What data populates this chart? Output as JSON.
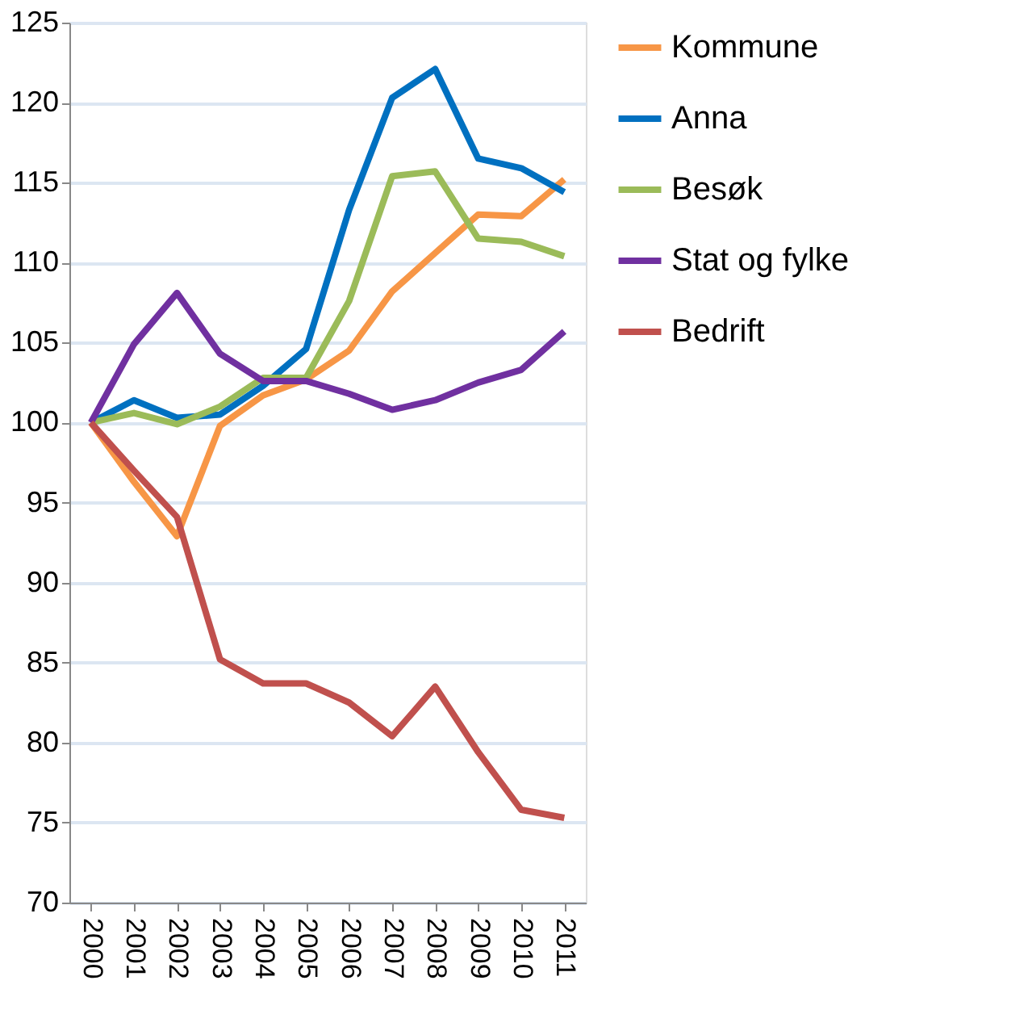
{
  "chart_data": {
    "type": "line",
    "categories": [
      "2000",
      "2001",
      "2002",
      "2003",
      "2004",
      "2005",
      "2006",
      "2007",
      "2008",
      "2009",
      "2010",
      "2011"
    ],
    "series": [
      {
        "name": "Kommune",
        "color": "#f79646",
        "values": [
          100,
          96.3,
          92.9,
          99.8,
          101.7,
          102.7,
          104.5,
          108.2,
          110.6,
          113.0,
          112.9,
          115.2
        ]
      },
      {
        "name": "Anna",
        "color": "#0070c0",
        "values": [
          100,
          101.4,
          100.3,
          100.5,
          102.3,
          104.6,
          113.3,
          120.3,
          122.1,
          116.5,
          115.9,
          114.4
        ]
      },
      {
        "name": "Besøk",
        "color": "#9bbb59",
        "values": [
          100,
          100.6,
          99.9,
          101.0,
          102.8,
          102.8,
          107.6,
          115.4,
          115.7,
          111.5,
          111.3,
          110.4
        ]
      },
      {
        "name": "Stat og fylke",
        "color": "#7030a0",
        "values": [
          100,
          104.9,
          108.1,
          104.3,
          102.6,
          102.6,
          101.8,
          100.8,
          101.4,
          102.5,
          103.3,
          105.7
        ]
      },
      {
        "name": "Bedrift",
        "color": "#c0504d",
        "values": [
          100,
          97.0,
          94.1,
          85.2,
          83.7,
          83.7,
          82.5,
          80.4,
          83.5,
          79.4,
          75.8,
          75.3
        ]
      }
    ],
    "ylim": [
      70,
      125
    ],
    "yticks": [
      70,
      75,
      80,
      85,
      90,
      95,
      100,
      105,
      110,
      115,
      120,
      125
    ],
    "grid": "y",
    "legend": "right",
    "marker": "none",
    "line_style": "solid"
  }
}
